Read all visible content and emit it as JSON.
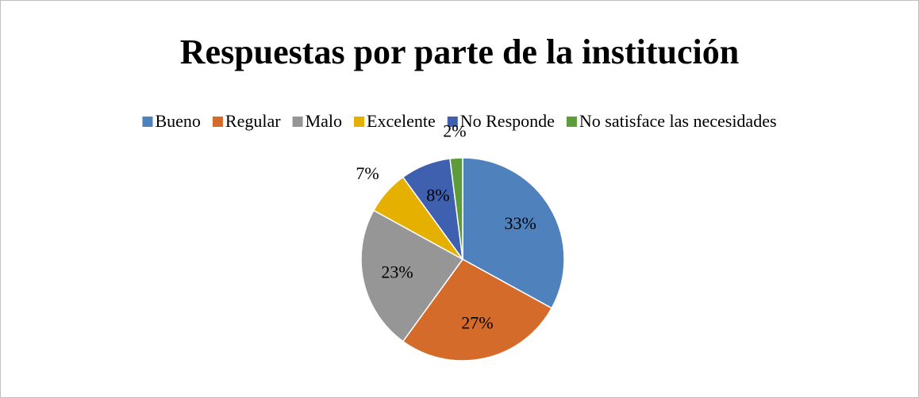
{
  "chart_data": {
    "type": "pie",
    "title": "Respuestas por parte de la institución",
    "categories": [
      "Bueno",
      "Regular",
      "Malo",
      "Excelente",
      "No Responde",
      "No satisface las necesidades"
    ],
    "values": [
      33,
      27,
      23,
      7,
      8,
      2
    ],
    "value_labels": [
      "33%",
      "27%",
      "23%",
      "7%",
      "8%",
      "2%"
    ],
    "colors": [
      "#4f81bd",
      "#d46b2a",
      "#969696",
      "#e6b000",
      "#3f5faf",
      "#5e9b3b"
    ],
    "legend": "top"
  }
}
